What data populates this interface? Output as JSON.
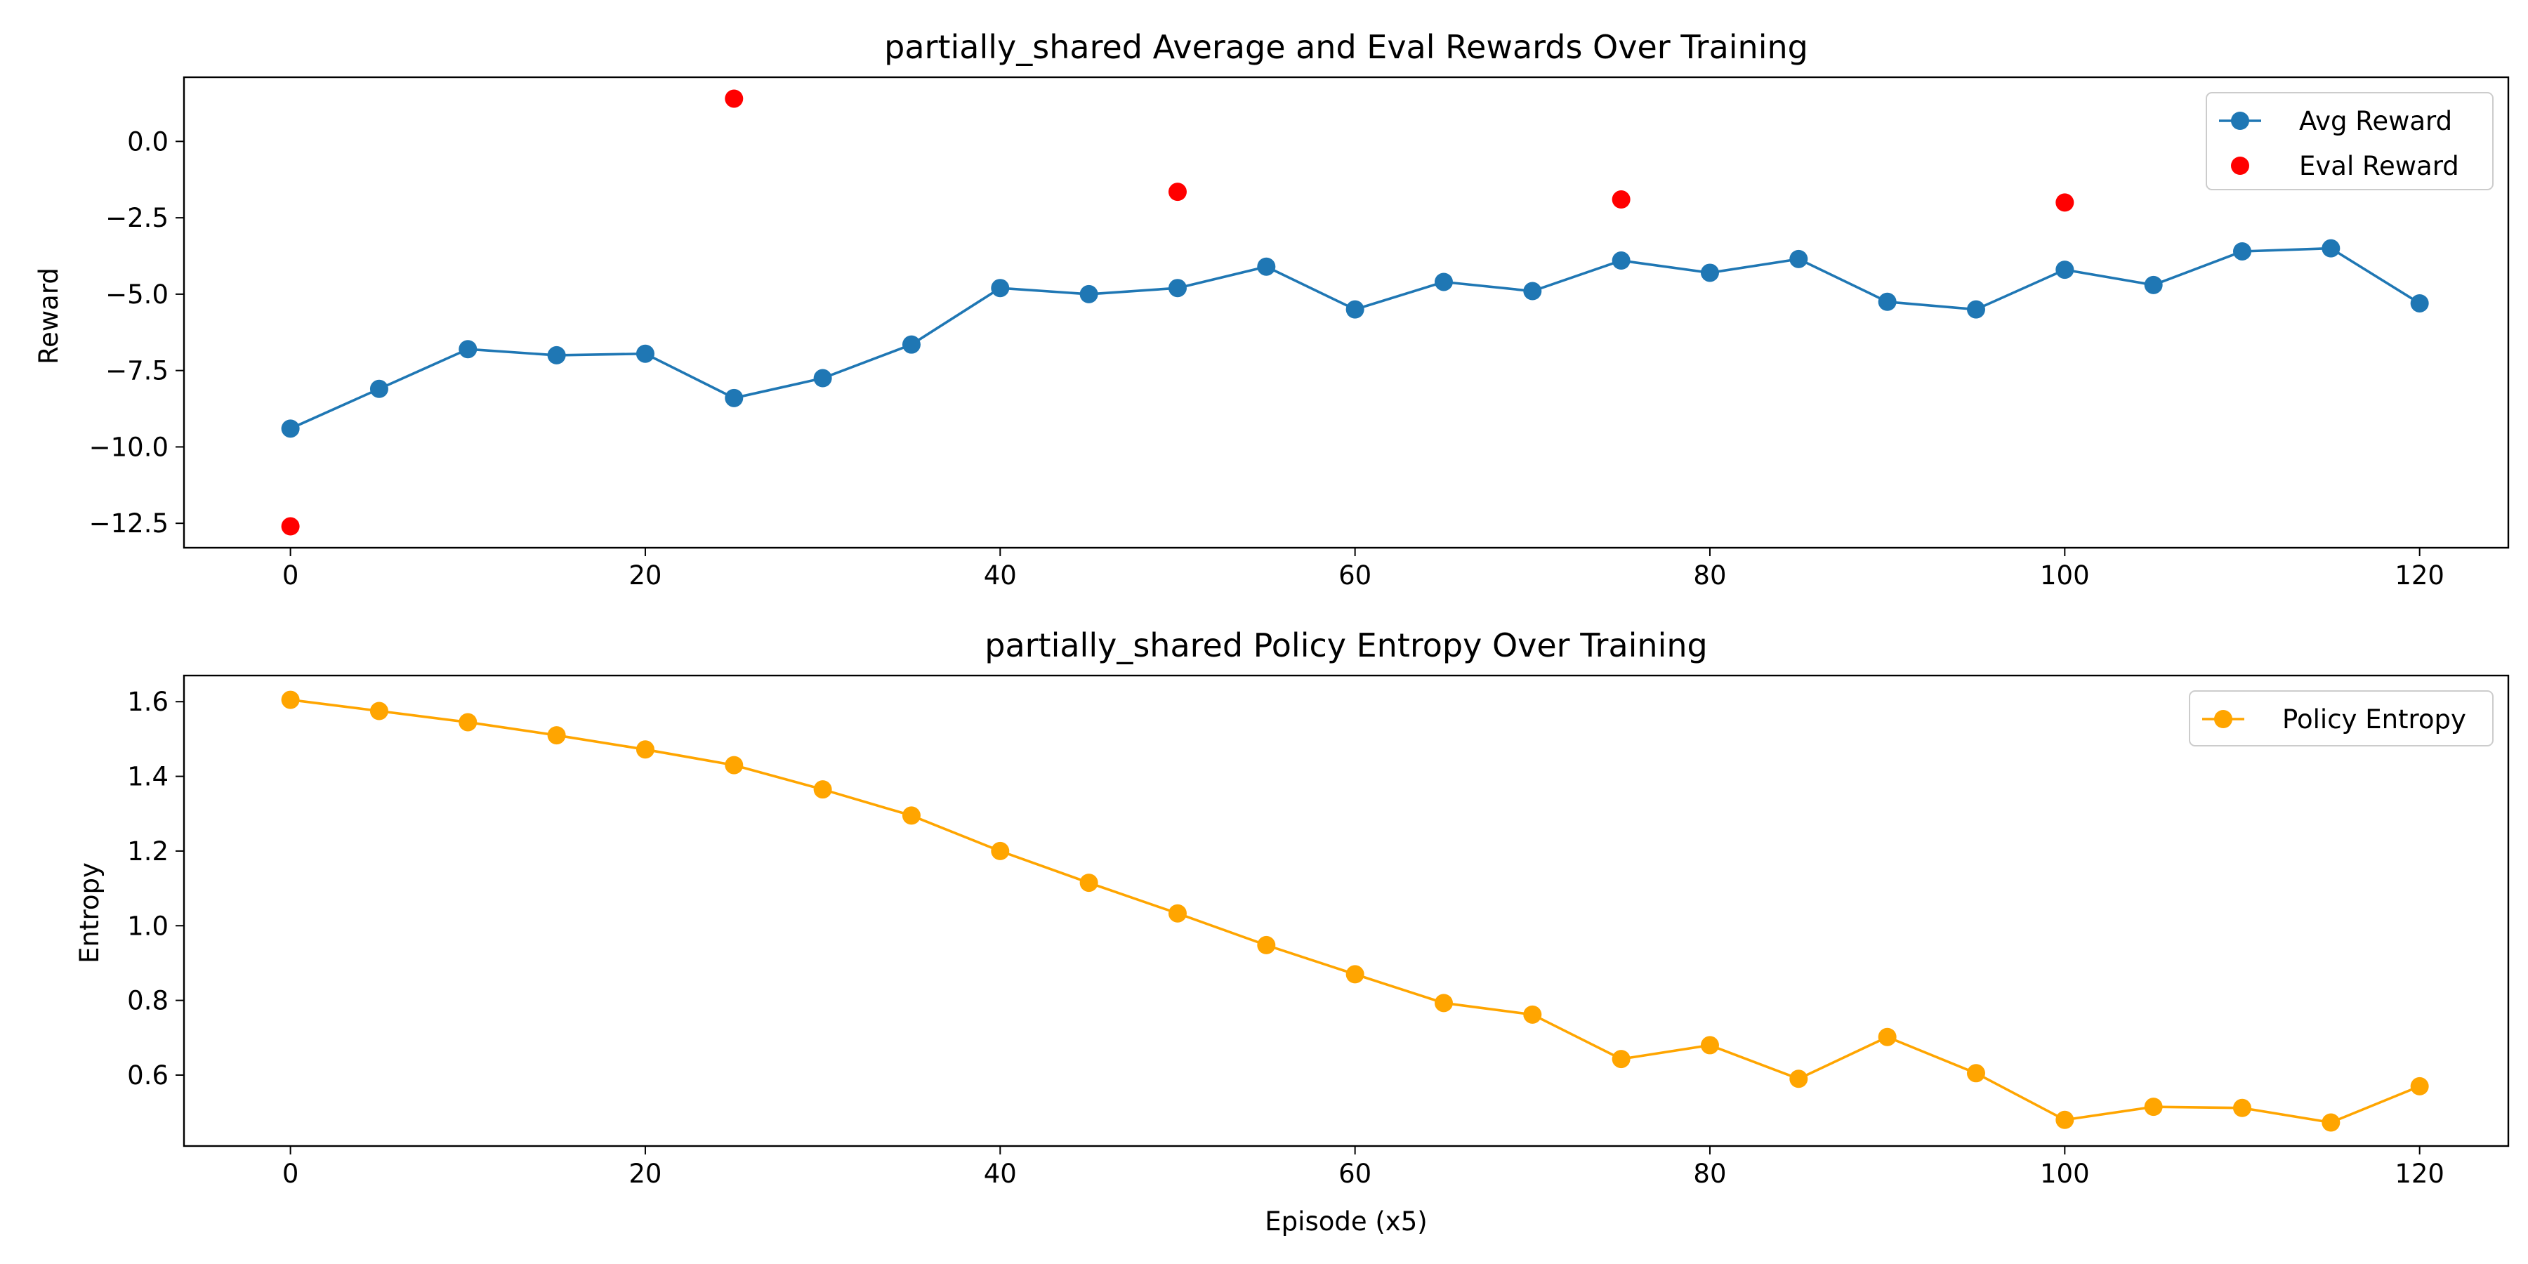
{
  "colors": {
    "avg": "#1f77b4",
    "eval": "#ff0000",
    "entropy": "#ffa500"
  },
  "xlabel": "Episode (x5)",
  "chart_data": [
    {
      "type": "line",
      "title": "partially_shared Average and Eval Rewards Over Training",
      "xlabel": "",
      "ylabel": "Reward",
      "xlim": [
        -6,
        125
      ],
      "ylim": [
        -13.3,
        2.1
      ],
      "xticks": [
        0,
        20,
        40,
        60,
        80,
        100,
        120
      ],
      "xtick_labels": [
        "0",
        "20",
        "40",
        "60",
        "80",
        "100",
        "120"
      ],
      "yticks": [
        0,
        -2.5,
        -5,
        -7.5,
        -10,
        -12.5
      ],
      "ytick_labels": [
        "0.0",
        "−2.5",
        "−5.0",
        "−7.5",
        "−10.0",
        "−12.5"
      ],
      "grid": false,
      "legend": "upper right",
      "series": [
        {
          "name": "Avg Reward",
          "style": "line-marker",
          "color": "#1f77b4",
          "x": [
            0,
            5,
            10,
            15,
            20,
            25,
            30,
            35,
            40,
            45,
            50,
            55,
            60,
            65,
            70,
            75,
            80,
            85,
            90,
            95,
            100,
            105,
            110,
            115,
            120
          ],
          "y": [
            -9.4,
            -8.1,
            -6.8,
            -7.0,
            -6.95,
            -8.4,
            -7.75,
            -6.65,
            -4.8,
            -5.0,
            -4.8,
            -4.1,
            -5.5,
            -4.6,
            -4.9,
            -3.9,
            -4.3,
            -3.85,
            -5.25,
            -5.5,
            -4.2,
            -4.7,
            -3.6,
            -3.5,
            -5.3
          ]
        },
        {
          "name": "Eval Reward",
          "style": "marker",
          "color": "#ff0000",
          "x": [
            0,
            25,
            50,
            75,
            100
          ],
          "y": [
            -12.6,
            1.4,
            -1.65,
            -1.9,
            -2.0
          ]
        }
      ]
    },
    {
      "type": "line",
      "title": "partially_shared Policy Entropy Over Training",
      "xlabel": "Episode (x5)",
      "ylabel": "Entropy",
      "xlim": [
        -6,
        125
      ],
      "ylim": [
        0.41,
        1.67
      ],
      "xticks": [
        0,
        20,
        40,
        60,
        80,
        100,
        120
      ],
      "xtick_labels": [
        "0",
        "20",
        "40",
        "60",
        "80",
        "100",
        "120"
      ],
      "yticks": [
        0.6,
        0.8,
        1.0,
        1.2,
        1.4,
        1.6
      ],
      "ytick_labels": [
        "0.6",
        "0.8",
        "1.0",
        "1.2",
        "1.4",
        "1.6"
      ],
      "grid": false,
      "legend": "upper right",
      "series": [
        {
          "name": "Policy Entropy",
          "style": "line-marker",
          "color": "#ffa500",
          "x": [
            0,
            5,
            10,
            15,
            20,
            25,
            30,
            35,
            40,
            45,
            50,
            55,
            60,
            65,
            70,
            75,
            80,
            85,
            90,
            95,
            100,
            105,
            110,
            115,
            120
          ],
          "y": [
            1.605,
            1.575,
            1.545,
            1.51,
            1.472,
            1.43,
            1.365,
            1.295,
            1.2,
            1.115,
            1.033,
            0.948,
            0.87,
            0.793,
            0.762,
            0.643,
            0.68,
            0.59,
            0.702,
            0.605,
            0.48,
            0.515,
            0.512,
            0.473,
            0.57
          ]
        }
      ]
    }
  ]
}
